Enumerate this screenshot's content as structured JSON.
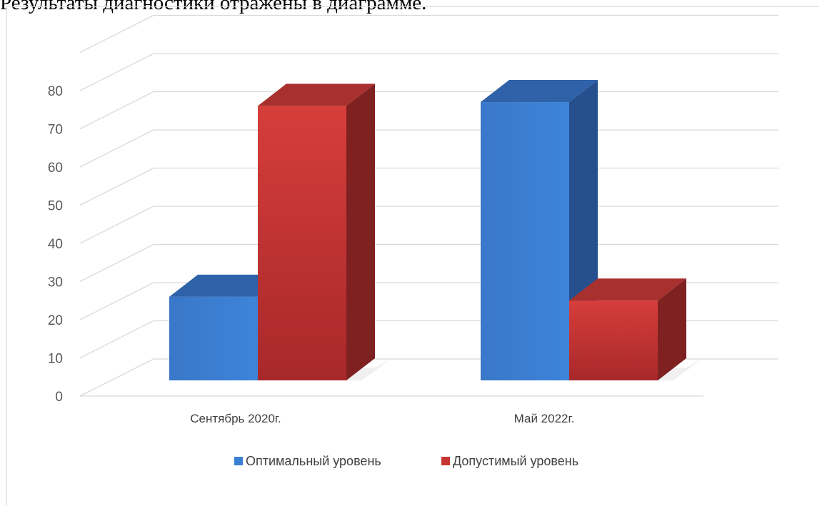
{
  "caption": "Результаты диагностики отражены в диаграмме.",
  "chart_data": {
    "type": "bar",
    "categories": [
      "Сентябрь 2020г.",
      "Май 2022г."
    ],
    "series": [
      {
        "name": "Оптимальный уровень",
        "values": [
          26,
          77
        ],
        "color": "#3b7fd4"
      },
      {
        "name": "Допустимый уровень",
        "values": [
          76,
          25
        ],
        "color": "#c73532"
      }
    ],
    "ylim": [
      0,
      90
    ],
    "yticks": [
      0,
      10,
      20,
      30,
      40,
      50,
      60,
      70,
      80
    ],
    "grid": true,
    "legend": "bottom",
    "style": "3d-column"
  }
}
